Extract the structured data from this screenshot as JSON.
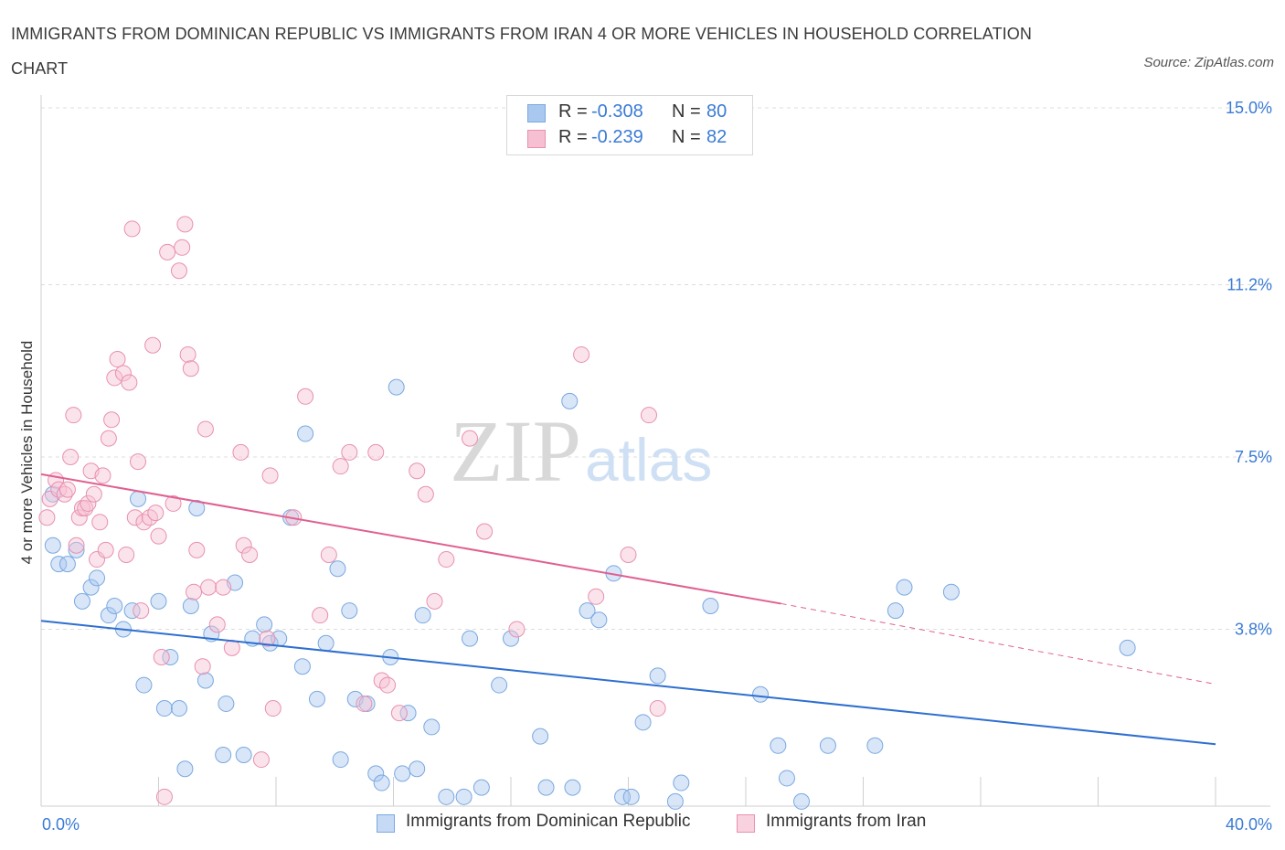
{
  "title": "IMMIGRANTS FROM DOMINICAN REPUBLIC VS IMMIGRANTS FROM IRAN 4 OR MORE VEHICLES IN HOUSEHOLD CORRELATION CHART",
  "source": "Source: ZipAtlas.com",
  "watermark": {
    "zip": "ZIP",
    "atlas": "atlas"
  },
  "legend": {
    "rows": [
      {
        "r_label": "R =",
        "r_value": "-0.308",
        "n_label": "N =",
        "n_value": "80",
        "color": "#a8c8f0",
        "border": "#7aa8e0"
      },
      {
        "r_label": "R =",
        "r_value": "-0.239",
        "n_label": "N =",
        "n_value": "82",
        "color": "#f6c0d2",
        "border": "#e890b0"
      }
    ]
  },
  "bottom_legend": [
    {
      "label": "Immigrants from Dominican Republic",
      "color": "#c6daf6",
      "border": "#7aa8e0"
    },
    {
      "label": "Immigrants from Iran",
      "color": "#f9d2df",
      "border": "#e890b0"
    }
  ],
  "chart_data": {
    "type": "scatter",
    "title": "IMMIGRANTS FROM DOMINICAN REPUBLIC VS IMMIGRANTS FROM IRAN 4 OR MORE VEHICLES IN HOUSEHOLD CORRELATION CHART",
    "xlabel": "",
    "ylabel": "4 or more Vehicles in Household",
    "xlim": [
      0,
      40
    ],
    "ylim": [
      0,
      15
    ],
    "x_tick_labels": [
      "0.0%",
      "40.0%"
    ],
    "y_ticks": [
      3.8,
      7.5,
      11.2,
      15.0
    ],
    "y_tick_labels": [
      "3.8%",
      "7.5%",
      "11.2%",
      "15.0%"
    ],
    "grid": true,
    "series": [
      {
        "name": "Immigrants from Dominican Republic",
        "color": "#7aa8e0",
        "fill": "rgba(168,200,240,0.45)",
        "trend_color": "#2e6fd0",
        "trend": {
          "x": [
            0,
            40
          ],
          "y": [
            3.98,
            1.33
          ]
        },
        "points": [
          [
            0.4,
            6.7
          ],
          [
            0.4,
            5.6
          ],
          [
            0.6,
            5.2
          ],
          [
            0.9,
            5.2
          ],
          [
            1.2,
            5.5
          ],
          [
            1.4,
            4.4
          ],
          [
            1.7,
            4.7
          ],
          [
            1.9,
            4.9
          ],
          [
            2.3,
            4.1
          ],
          [
            2.5,
            4.3
          ],
          [
            2.8,
            3.8
          ],
          [
            3.1,
            4.2
          ],
          [
            3.3,
            6.6
          ],
          [
            3.5,
            2.6
          ],
          [
            4.0,
            4.4
          ],
          [
            4.2,
            2.1
          ],
          [
            4.4,
            3.2
          ],
          [
            4.7,
            2.1
          ],
          [
            4.9,
            0.8
          ],
          [
            5.1,
            4.3
          ],
          [
            5.3,
            6.4
          ],
          [
            5.6,
            2.7
          ],
          [
            5.8,
            3.7
          ],
          [
            6.2,
            1.1
          ],
          [
            6.3,
            2.2
          ],
          [
            6.6,
            4.8
          ],
          [
            6.9,
            1.1
          ],
          [
            7.2,
            3.6
          ],
          [
            7.6,
            3.9
          ],
          [
            7.8,
            3.5
          ],
          [
            8.1,
            3.6
          ],
          [
            8.5,
            6.2
          ],
          [
            8.9,
            3.0
          ],
          [
            9.0,
            8.0
          ],
          [
            9.4,
            2.3
          ],
          [
            9.7,
            3.5
          ],
          [
            10.1,
            5.1
          ],
          [
            10.2,
            1.0
          ],
          [
            10.5,
            4.2
          ],
          [
            10.7,
            2.3
          ],
          [
            11.1,
            2.2
          ],
          [
            11.4,
            0.7
          ],
          [
            11.6,
            0.5
          ],
          [
            11.9,
            3.2
          ],
          [
            12.1,
            9.0
          ],
          [
            12.3,
            0.7
          ],
          [
            12.5,
            2.0
          ],
          [
            12.8,
            0.8
          ],
          [
            13.0,
            4.1
          ],
          [
            13.3,
            1.7
          ],
          [
            13.8,
            0.2
          ],
          [
            14.4,
            0.2
          ],
          [
            14.6,
            3.6
          ],
          [
            15.0,
            0.4
          ],
          [
            15.6,
            2.6
          ],
          [
            16.0,
            3.6
          ],
          [
            17.0,
            1.5
          ],
          [
            17.2,
            0.4
          ],
          [
            18.0,
            8.7
          ],
          [
            18.1,
            0.4
          ],
          [
            18.6,
            4.2
          ],
          [
            19.0,
            4.0
          ],
          [
            19.5,
            5.0
          ],
          [
            19.8,
            0.2
          ],
          [
            20.1,
            0.2
          ],
          [
            20.5,
            1.8
          ],
          [
            21.0,
            2.8
          ],
          [
            21.6,
            0.1
          ],
          [
            21.8,
            0.5
          ],
          [
            22.8,
            4.3
          ],
          [
            24.5,
            2.4
          ],
          [
            25.1,
            1.3
          ],
          [
            25.4,
            0.6
          ],
          [
            25.9,
            0.1
          ],
          [
            26.8,
            1.3
          ],
          [
            28.4,
            1.3
          ],
          [
            29.1,
            4.2
          ],
          [
            29.4,
            4.7
          ],
          [
            31.0,
            4.6
          ],
          [
            37.0,
            3.4
          ]
        ]
      },
      {
        "name": "Immigrants from Iran",
        "color": "#e890b0",
        "fill": "rgba(246,192,210,0.45)",
        "trend_color": "#e06090",
        "trend": {
          "x": [
            0,
            25.2
          ],
          "y": [
            7.13,
            4.35
          ]
        },
        "trend_dashed": {
          "x": [
            25.2,
            40
          ],
          "y": [
            4.35,
            2.62
          ]
        },
        "points": [
          [
            0.2,
            6.2
          ],
          [
            0.3,
            6.6
          ],
          [
            0.5,
            7.0
          ],
          [
            0.6,
            6.8
          ],
          [
            0.8,
            6.7
          ],
          [
            0.9,
            6.8
          ],
          [
            1.0,
            7.5
          ],
          [
            1.1,
            8.4
          ],
          [
            1.2,
            5.6
          ],
          [
            1.3,
            6.2
          ],
          [
            1.4,
            6.4
          ],
          [
            1.5,
            6.4
          ],
          [
            1.6,
            6.5
          ],
          [
            1.7,
            7.2
          ],
          [
            1.8,
            6.7
          ],
          [
            1.9,
            5.3
          ],
          [
            2.0,
            6.1
          ],
          [
            2.1,
            7.1
          ],
          [
            2.2,
            5.5
          ],
          [
            2.3,
            7.9
          ],
          [
            2.4,
            8.3
          ],
          [
            2.5,
            9.2
          ],
          [
            2.6,
            9.6
          ],
          [
            2.8,
            9.3
          ],
          [
            2.9,
            5.4
          ],
          [
            3.0,
            9.1
          ],
          [
            3.1,
            12.4
          ],
          [
            3.2,
            6.2
          ],
          [
            3.3,
            7.4
          ],
          [
            3.4,
            4.2
          ],
          [
            3.5,
            6.1
          ],
          [
            3.7,
            6.2
          ],
          [
            3.8,
            9.9
          ],
          [
            3.9,
            6.3
          ],
          [
            4.0,
            5.8
          ],
          [
            4.1,
            3.2
          ],
          [
            4.2,
            0.2
          ],
          [
            4.3,
            11.9
          ],
          [
            4.5,
            6.5
          ],
          [
            4.7,
            11.5
          ],
          [
            4.8,
            12.0
          ],
          [
            4.9,
            12.5
          ],
          [
            5.0,
            9.7
          ],
          [
            5.1,
            9.4
          ],
          [
            5.2,
            4.6
          ],
          [
            5.3,
            5.5
          ],
          [
            5.5,
            3.0
          ],
          [
            5.6,
            8.1
          ],
          [
            5.7,
            4.7
          ],
          [
            6.0,
            3.9
          ],
          [
            6.2,
            4.7
          ],
          [
            6.5,
            3.4
          ],
          [
            6.8,
            7.6
          ],
          [
            6.9,
            5.6
          ],
          [
            7.1,
            5.4
          ],
          [
            7.5,
            1.0
          ],
          [
            7.7,
            3.6
          ],
          [
            7.8,
            7.1
          ],
          [
            7.9,
            2.1
          ],
          [
            8.6,
            6.2
          ],
          [
            9.0,
            8.8
          ],
          [
            9.5,
            4.1
          ],
          [
            9.8,
            5.4
          ],
          [
            10.2,
            7.3
          ],
          [
            10.5,
            7.6
          ],
          [
            11.0,
            2.2
          ],
          [
            11.4,
            7.6
          ],
          [
            11.6,
            2.7
          ],
          [
            11.8,
            2.6
          ],
          [
            12.2,
            2.0
          ],
          [
            12.8,
            7.2
          ],
          [
            13.1,
            6.7
          ],
          [
            13.4,
            4.4
          ],
          [
            13.8,
            5.3
          ],
          [
            14.6,
            7.9
          ],
          [
            15.1,
            5.9
          ],
          [
            16.2,
            3.8
          ],
          [
            18.4,
            9.7
          ],
          [
            18.9,
            4.5
          ],
          [
            20.0,
            5.4
          ],
          [
            20.7,
            8.4
          ],
          [
            21.0,
            2.1
          ]
        ]
      }
    ]
  }
}
